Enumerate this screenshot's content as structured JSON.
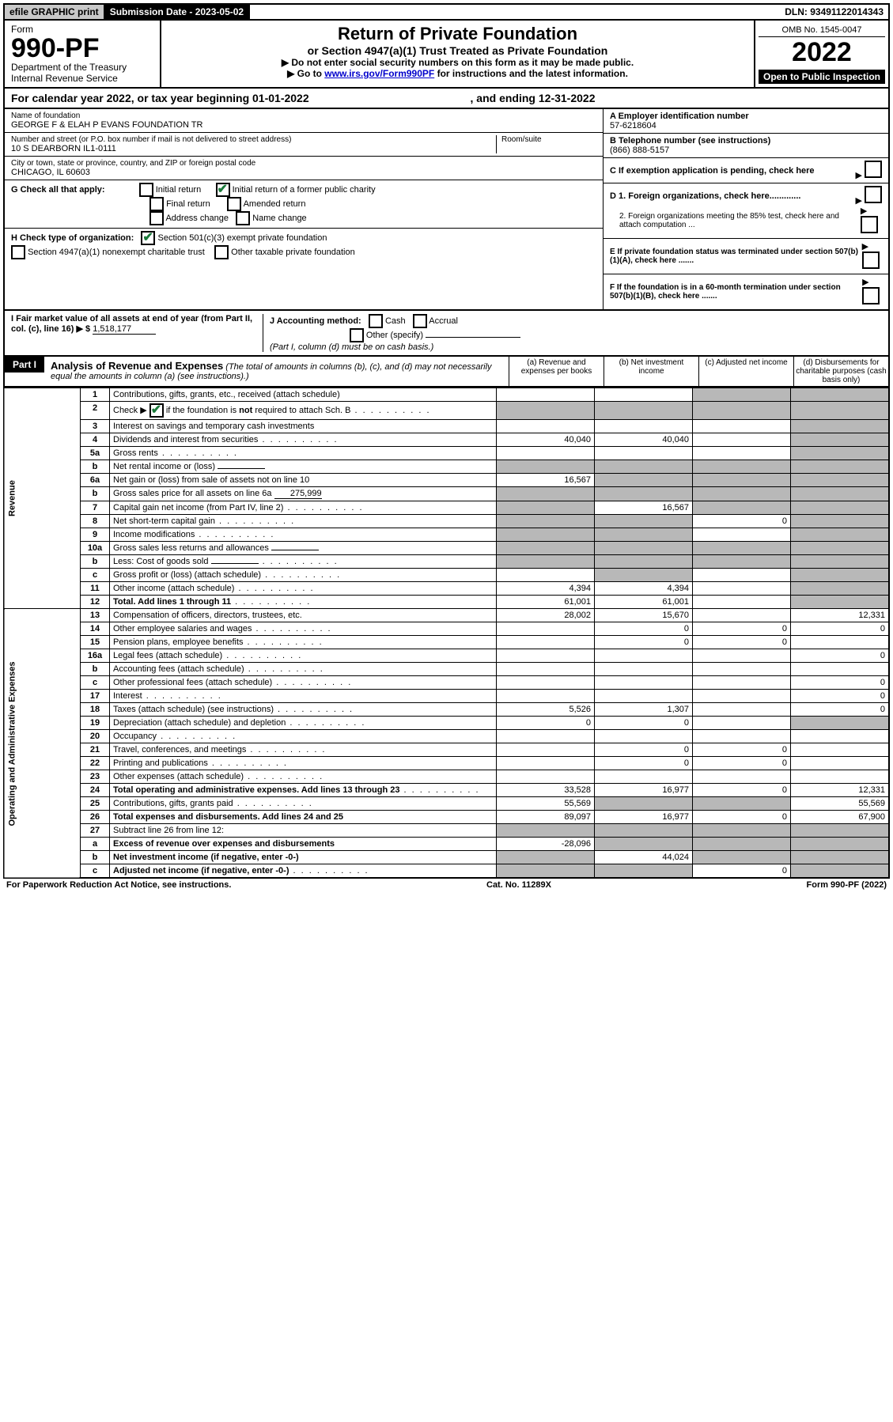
{
  "topbar": {
    "efile": "efile GRAPHIC print",
    "submission": "Submission Date - 2023-05-02",
    "dln": "DLN: 93491122014343"
  },
  "header": {
    "form_word": "Form",
    "form_no": "990-PF",
    "dept": "Department of the Treasury",
    "irs": "Internal Revenue Service",
    "title": "Return of Private Foundation",
    "subtitle": "or Section 4947(a)(1) Trust Treated as Private Foundation",
    "instr1": "▶ Do not enter social security numbers on this form as it may be made public.",
    "instr2_pre": "▶ Go to ",
    "instr2_link": "www.irs.gov/Form990PF",
    "instr2_post": " for instructions and the latest information.",
    "omb": "OMB No. 1545-0047",
    "year": "2022",
    "open": "Open to Public Inspection"
  },
  "cal_year": {
    "pre": "For calendar year 2022, or tax year beginning ",
    "begin": "01-01-2022",
    "mid": " , and ending ",
    "end": "12-31-2022"
  },
  "entity": {
    "name_label": "Name of foundation",
    "name": "GEORGE F & ELAH P EVANS FOUNDATION TR",
    "addr_label": "Number and street (or P.O. box number if mail is not delivered to street address)",
    "addr": "10 S DEARBORN IL1-0111",
    "room_label": "Room/suite",
    "city_label": "City or town, state or province, country, and ZIP or foreign postal code",
    "city": "CHICAGO, IL  60603",
    "a_label": "A Employer identification number",
    "a_val": "57-6218604",
    "b_label": "B Telephone number (see instructions)",
    "b_val": "(866) 888-5157",
    "c_label": "C If exemption application is pending, check here",
    "d1": "D 1. Foreign organizations, check here.............",
    "d2": "2. Foreign organizations meeting the 85% test, check here and attach computation ...",
    "e": "E  If private foundation status was terminated under section 507(b)(1)(A), check here .......",
    "f": "F  If the foundation is in a 60-month termination under section 507(b)(1)(B), check here .......",
    "g_label": "G Check all that apply:",
    "g_opts": [
      "Initial return",
      "Final return",
      "Address change",
      "Initial return of a former public charity",
      "Amended return",
      "Name change"
    ],
    "h_label": "H Check type of organization:",
    "h_opt1": "Section 501(c)(3) exempt private foundation",
    "h_opt2": "Section 4947(a)(1) nonexempt charitable trust",
    "h_opt3": "Other taxable private foundation",
    "i_label": "I Fair market value of all assets at end of year (from Part II, col. (c), line 16) ▶ $",
    "i_val": "1,518,177",
    "j_label": "J Accounting method:",
    "j_cash": "Cash",
    "j_accrual": "Accrual",
    "j_other": "Other (specify)",
    "j_note": "(Part I, column (d) must be on cash basis.)"
  },
  "part1": {
    "label": "Part I",
    "title": "Analysis of Revenue and Expenses",
    "note": "(The total of amounts in columns (b), (c), and (d) may not necessarily equal the amounts in column (a) (see instructions).)",
    "col_a": "(a)   Revenue and expenses per books",
    "col_b": "(b)   Net investment income",
    "col_c": "(c)   Adjusted net income",
    "col_d": "(d)   Disbursements for charitable purposes (cash basis only)"
  },
  "side_labels": {
    "revenue": "Revenue",
    "expenses": "Operating and Administrative Expenses"
  },
  "rows": [
    {
      "n": "1",
      "desc": "Contributions, gifts, grants, etc., received (attach schedule)",
      "a": "",
      "b": "",
      "c": "g",
      "d": "g"
    },
    {
      "n": "2",
      "desc": "Check ▶ ☑ if the foundation is not required to attach Sch. B",
      "dots": true,
      "a": "g",
      "b": "g",
      "c": "g",
      "d": "g",
      "check": true,
      "nob": true
    },
    {
      "n": "3",
      "desc": "Interest on savings and temporary cash investments",
      "a": "",
      "b": "",
      "c": "",
      "d": "g"
    },
    {
      "n": "4",
      "desc": "Dividends and interest from securities",
      "dots": true,
      "a": "40,040",
      "b": "40,040",
      "c": "",
      "d": "g"
    },
    {
      "n": "5a",
      "desc": "Gross rents",
      "dots": true,
      "a": "",
      "b": "",
      "c": "",
      "d": "g"
    },
    {
      "n": "b",
      "desc": "Net rental income or (loss)",
      "under": "",
      "a": "g",
      "b": "g",
      "c": "g",
      "d": "g"
    },
    {
      "n": "6a",
      "desc": "Net gain or (loss) from sale of assets not on line 10",
      "a": "16,567",
      "b": "g",
      "c": "g",
      "d": "g"
    },
    {
      "n": "b",
      "desc": "Gross sales price for all assets on line 6a",
      "under": "275,999",
      "a": "g",
      "b": "g",
      "c": "g",
      "d": "g"
    },
    {
      "n": "7",
      "desc": "Capital gain net income (from Part IV, line 2)",
      "dots": true,
      "a": "g",
      "b": "16,567",
      "c": "g",
      "d": "g"
    },
    {
      "n": "8",
      "desc": "Net short-term capital gain",
      "dots": true,
      "a": "g",
      "b": "g",
      "c": "0",
      "d": "g"
    },
    {
      "n": "9",
      "desc": "Income modifications",
      "dots": true,
      "a": "g",
      "b": "g",
      "c": "",
      "d": "g"
    },
    {
      "n": "10a",
      "desc": "Gross sales less returns and allowances",
      "under": "",
      "a": "g",
      "b": "g",
      "c": "g",
      "d": "g"
    },
    {
      "n": "b",
      "desc": "Less: Cost of goods sold",
      "dots": true,
      "under": "",
      "a": "g",
      "b": "g",
      "c": "g",
      "d": "g"
    },
    {
      "n": "c",
      "desc": "Gross profit or (loss) (attach schedule)",
      "dots": true,
      "a": "",
      "b": "g",
      "c": "",
      "d": "g"
    },
    {
      "n": "11",
      "desc": "Other income (attach schedule)",
      "dots": true,
      "a": "4,394",
      "b": "4,394",
      "c": "",
      "d": "g"
    },
    {
      "n": "12",
      "desc": "Total. Add lines 1 through 11",
      "dots": true,
      "bold": true,
      "a": "61,001",
      "b": "61,001",
      "c": "",
      "d": "g"
    },
    {
      "n": "13",
      "desc": "Compensation of officers, directors, trustees, etc.",
      "a": "28,002",
      "b": "15,670",
      "c": "",
      "d": "12,331"
    },
    {
      "n": "14",
      "desc": "Other employee salaries and wages",
      "dots": true,
      "a": "",
      "b": "0",
      "c": "0",
      "d": "0"
    },
    {
      "n": "15",
      "desc": "Pension plans, employee benefits",
      "dots": true,
      "a": "",
      "b": "0",
      "c": "0",
      "d": ""
    },
    {
      "n": "16a",
      "desc": "Legal fees (attach schedule)",
      "dots": true,
      "a": "",
      "b": "",
      "c": "",
      "d": "0"
    },
    {
      "n": "b",
      "desc": "Accounting fees (attach schedule)",
      "dots": true,
      "a": "",
      "b": "",
      "c": "",
      "d": ""
    },
    {
      "n": "c",
      "desc": "Other professional fees (attach schedule)",
      "dots": true,
      "a": "",
      "b": "",
      "c": "",
      "d": "0"
    },
    {
      "n": "17",
      "desc": "Interest",
      "dots": true,
      "a": "",
      "b": "",
      "c": "",
      "d": "0"
    },
    {
      "n": "18",
      "desc": "Taxes (attach schedule) (see instructions)",
      "dots": true,
      "a": "5,526",
      "b": "1,307",
      "c": "",
      "d": "0"
    },
    {
      "n": "19",
      "desc": "Depreciation (attach schedule) and depletion",
      "dots": true,
      "a": "0",
      "b": "0",
      "c": "",
      "d": "g"
    },
    {
      "n": "20",
      "desc": "Occupancy",
      "dots": true,
      "a": "",
      "b": "",
      "c": "",
      "d": ""
    },
    {
      "n": "21",
      "desc": "Travel, conferences, and meetings",
      "dots": true,
      "a": "",
      "b": "0",
      "c": "0",
      "d": ""
    },
    {
      "n": "22",
      "desc": "Printing and publications",
      "dots": true,
      "a": "",
      "b": "0",
      "c": "0",
      "d": ""
    },
    {
      "n": "23",
      "desc": "Other expenses (attach schedule)",
      "dots": true,
      "a": "",
      "b": "",
      "c": "",
      "d": ""
    },
    {
      "n": "24",
      "desc": "Total operating and administrative expenses. Add lines 13 through 23",
      "dots": true,
      "bold": true,
      "a": "33,528",
      "b": "16,977",
      "c": "0",
      "d": "12,331"
    },
    {
      "n": "25",
      "desc": "Contributions, gifts, grants paid",
      "dots": true,
      "a": "55,569",
      "b": "g",
      "c": "g",
      "d": "55,569"
    },
    {
      "n": "26",
      "desc": "Total expenses and disbursements. Add lines 24 and 25",
      "bold": true,
      "a": "89,097",
      "b": "16,977",
      "c": "0",
      "d": "67,900"
    },
    {
      "n": "27",
      "desc": "Subtract line 26 from line 12:",
      "a": "g",
      "b": "g",
      "c": "g",
      "d": "g"
    },
    {
      "n": "a",
      "desc": "Excess of revenue over expenses and disbursements",
      "bold": true,
      "a": "-28,096",
      "b": "g",
      "c": "g",
      "d": "g"
    },
    {
      "n": "b",
      "desc": "Net investment income (if negative, enter -0-)",
      "bold": true,
      "a": "g",
      "b": "44,024",
      "c": "g",
      "d": "g"
    },
    {
      "n": "c",
      "desc": "Adjusted net income (if negative, enter -0-)",
      "bold": true,
      "dots": true,
      "a": "g",
      "b": "g",
      "c": "0",
      "d": "g"
    }
  ],
  "footer": {
    "left": "For Paperwork Reduction Act Notice, see instructions.",
    "mid": "Cat. No. 11289X",
    "right": "Form 990-PF (2022)"
  }
}
